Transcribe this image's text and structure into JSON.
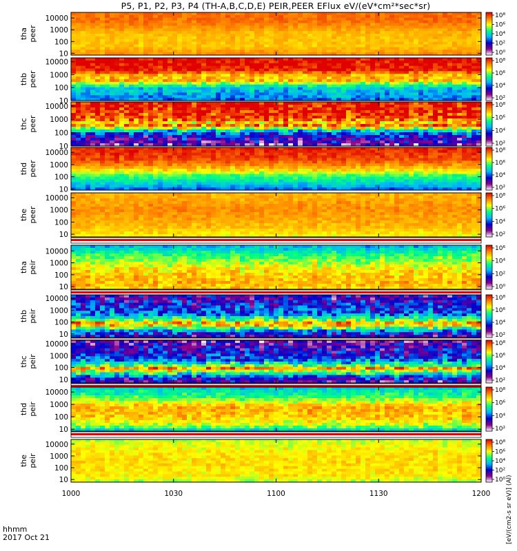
{
  "chart_data": {
    "type": "heatmap",
    "title": "P5, P1, P2, P3, P4 (TH-A,B,C,D,E) PEIR,PEER EFlux eV/(eV*cm²*sec*sr)",
    "xlabel": [
      "hhmm",
      "2017 Oct 21"
    ],
    "x_ticks": [
      "1000",
      "1030",
      "1100",
      "1130",
      "1200"
    ],
    "x_tick_minutes": [
      0,
      30,
      60,
      90,
      120
    ],
    "colorbar_label": "[eV/(cm2-s sr eV)] (Al)",
    "colorbar_scale": "log10",
    "colormap": [
      "#ffffff",
      "#8a008a",
      "#0000d0",
      "#00b4ff",
      "#00ff80",
      "#ffff00",
      "#ff8000",
      "#e00000"
    ],
    "panels": [
      {
        "ylabel": [
          "tha",
          "peer"
        ],
        "yticks": [
          "10000",
          "1000",
          "100",
          "10"
        ],
        "cb_ticks": [
          "10⁸",
          "10⁶",
          "10⁴",
          "10²",
          "10⁰"
        ],
        "cb_range": [
          0,
          8
        ],
        "energy_range_eV": [
          7,
          30000
        ],
        "spectrum": [
          [
            0.0,
            7.0
          ],
          [
            0.2,
            7.0
          ],
          [
            0.5,
            6.3
          ],
          [
            0.8,
            6.2
          ],
          [
            1.0,
            6.8
          ]
        ],
        "noise": 0.25
      },
      {
        "ylabel": [
          "thb",
          "peer"
        ],
        "yticks": [
          "10000",
          "1000",
          "100",
          "10"
        ],
        "cb_ticks": [
          "10⁸",
          "10⁶",
          "10⁴",
          "10²"
        ],
        "cb_range": [
          1,
          8
        ],
        "energy_range_eV": [
          10,
          20000
        ],
        "spectrum": [
          [
            0.0,
            8.0
          ],
          [
            0.3,
            7.8
          ],
          [
            0.45,
            6.0
          ],
          [
            0.5,
            7.2
          ],
          [
            0.55,
            6.2
          ],
          [
            0.7,
            4.3
          ],
          [
            1.0,
            3.6
          ]
        ],
        "noise": 0.55
      },
      {
        "ylabel": [
          "thc",
          "peer"
        ],
        "yticks": [
          "10000",
          "1000",
          "100",
          "10"
        ],
        "cb_ticks": [
          "10⁸",
          "10⁶",
          "10⁴",
          "10²"
        ],
        "cb_range": [
          1,
          8
        ],
        "energy_range_eV": [
          10,
          20000
        ],
        "spectrum": [
          [
            0.0,
            8.0
          ],
          [
            0.35,
            7.6
          ],
          [
            0.48,
            6.5
          ],
          [
            0.55,
            7.2
          ],
          [
            0.62,
            5.0
          ],
          [
            0.75,
            3.0
          ],
          [
            1.0,
            2.0
          ]
        ],
        "noise": 0.9
      },
      {
        "ylabel": [
          "thd",
          "peer"
        ],
        "yticks": [
          "10000",
          "1000",
          "100",
          "10"
        ],
        "cb_ticks": [
          "10⁸",
          "10⁶",
          "10⁴",
          "10²"
        ],
        "cb_range": [
          1,
          8
        ],
        "energy_range_eV": [
          8,
          25000
        ],
        "spectrum": [
          [
            0.0,
            7.8
          ],
          [
            0.3,
            7.4
          ],
          [
            0.5,
            6.5
          ],
          [
            0.65,
            5.3
          ],
          [
            0.85,
            4.3
          ],
          [
            1.0,
            3.5
          ]
        ],
        "noise": 0.35
      },
      {
        "ylabel": [
          "the",
          "peer"
        ],
        "yticks": [
          "10000",
          "1000",
          "100",
          "10"
        ],
        "cb_ticks": [
          "10⁸",
          "10⁶",
          "10⁴",
          "10²"
        ],
        "cb_range": [
          1,
          8
        ],
        "energy_range_eV": [
          6,
          25000
        ],
        "spectrum": [
          [
            0.0,
            6.6
          ],
          [
            0.4,
            6.9
          ],
          [
            0.8,
            6.5
          ],
          [
            1.0,
            6.0
          ]
        ],
        "noise": 0.25
      },
      {
        "ylabel": [
          "tha",
          "peir"
        ],
        "yticks": [
          "10000",
          "1000",
          "100",
          "10"
        ],
        "cb_ticks": [
          "10⁶",
          "10⁴",
          "10²",
          "10⁰"
        ],
        "cb_range": [
          0,
          7
        ],
        "energy_range_eV": [
          6,
          30000
        ],
        "spectrum": [
          [
            0.0,
            3.0
          ],
          [
            0.25,
            4.2
          ],
          [
            0.55,
            5.2
          ],
          [
            0.85,
            5.6
          ],
          [
            1.0,
            5.4
          ]
        ],
        "noise": 0.45
      },
      {
        "ylabel": [
          "thb",
          "peir"
        ],
        "yticks": [
          "10000",
          "1000",
          "100",
          "10"
        ],
        "cb_ticks": [
          "10⁸",
          "10⁶",
          "10⁴",
          "10²"
        ],
        "cb_range": [
          1,
          8
        ],
        "energy_range_eV": [
          5,
          20000
        ],
        "spectrum": [
          [
            0.0,
            2.4
          ],
          [
            0.45,
            3.6
          ],
          [
            0.62,
            5.6
          ],
          [
            0.68,
            7.3
          ],
          [
            0.74,
            5.8
          ],
          [
            0.88,
            3.3
          ],
          [
            1.0,
            2.5
          ]
        ],
        "noise": 0.9
      },
      {
        "ylabel": [
          "thc",
          "peir"
        ],
        "yticks": [
          "10000",
          "1000",
          "100",
          "10"
        ],
        "cb_ticks": [
          "10⁸",
          "10⁶",
          "10⁴",
          "10²"
        ],
        "cb_range": [
          1,
          8
        ],
        "energy_range_eV": [
          5,
          20000
        ],
        "spectrum": [
          [
            0.0,
            2.2
          ],
          [
            0.45,
            3.4
          ],
          [
            0.6,
            5.4
          ],
          [
            0.67,
            7.2
          ],
          [
            0.74,
            5.4
          ],
          [
            0.9,
            3.0
          ],
          [
            1.0,
            2.3
          ]
        ],
        "noise": 0.9
      },
      {
        "ylabel": [
          "thd",
          "peir"
        ],
        "yticks": [
          "10000",
          "1000",
          "100",
          "10"
        ],
        "cb_ticks": [
          "10⁸",
          "10⁶",
          "10⁴",
          "10²"
        ],
        "cb_range": [
          1,
          8
        ],
        "energy_range_eV": [
          7,
          25000
        ],
        "spectrum": [
          [
            0.0,
            4.3
          ],
          [
            0.2,
            5.0
          ],
          [
            0.45,
            6.6
          ],
          [
            0.7,
            6.4
          ],
          [
            0.9,
            5.5
          ],
          [
            1.0,
            4.0
          ]
        ],
        "noise": 0.45
      },
      {
        "ylabel": [
          "the",
          "peir"
        ],
        "yticks": [
          "10000",
          "1000",
          "100",
          "10"
        ],
        "cb_ticks": [
          "10⁸",
          "10⁶",
          "10⁴",
          "10²",
          "10⁰"
        ],
        "cb_range": [
          0,
          8
        ],
        "energy_range_eV": [
          6,
          25000
        ],
        "spectrum": [
          [
            0.0,
            5.4
          ],
          [
            0.3,
            5.9
          ],
          [
            0.6,
            6.0
          ],
          [
            0.85,
            5.9
          ],
          [
            1.0,
            5.3
          ]
        ],
        "noise": 0.35
      }
    ]
  }
}
